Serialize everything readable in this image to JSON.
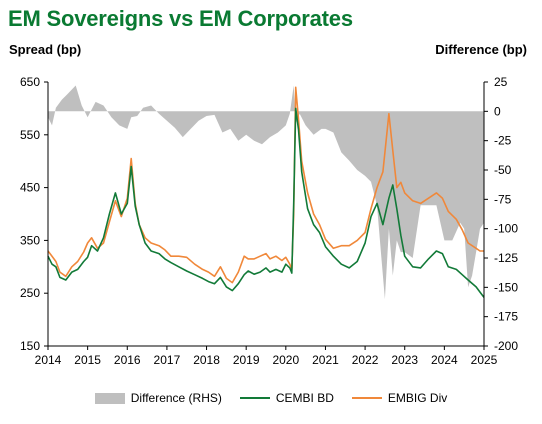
{
  "colors": {
    "title": "#0a7a32",
    "difference": "#bfbfbf",
    "cembi": "#127a38",
    "embig": "#f0883a"
  },
  "chart_data": {
    "type": "line",
    "title": "EM Sovereigns vs EM Corporates",
    "ylabel": "Spread (bp)",
    "y2label": "Difference (bp)",
    "x_ticks": [
      "2014",
      "2015",
      "2016",
      "2017",
      "2018",
      "2019",
      "2020",
      "2021",
      "2022",
      "2023",
      "2024",
      "2025"
    ],
    "ylim": [
      150,
      650
    ],
    "yticks": [
      150,
      250,
      350,
      450,
      550,
      650
    ],
    "y2lim": [
      -200,
      25
    ],
    "y2ticks": [
      -200,
      -175,
      -150,
      -125,
      -100,
      -75,
      -50,
      -25,
      0,
      25
    ],
    "legend_position": "bottom",
    "grid": false,
    "series": [
      {
        "name": "Difference (RHS)",
        "type": "area",
        "axis": "right",
        "x": [
          2014.0,
          2014.1,
          2014.2,
          2014.35,
          2014.5,
          2014.7,
          2014.85,
          2015.0,
          2015.2,
          2015.4,
          2015.6,
          2015.8,
          2016.0,
          2016.1,
          2016.25,
          2016.4,
          2016.6,
          2016.8,
          2017.0,
          2017.2,
          2017.4,
          2017.6,
          2017.8,
          2018.0,
          2018.2,
          2018.4,
          2018.6,
          2018.8,
          2019.0,
          2019.2,
          2019.4,
          2019.6,
          2019.8,
          2020.0,
          2020.1,
          2020.2,
          2020.25,
          2020.35,
          2020.5,
          2020.7,
          2020.9,
          2021.0,
          2021.2,
          2021.4,
          2021.6,
          2021.8,
          2022.0,
          2022.15,
          2022.3,
          2022.4,
          2022.5,
          2022.6,
          2022.7,
          2022.8,
          2022.9,
          2023.0,
          2023.2,
          2023.4,
          2023.6,
          2023.8,
          2024.0,
          2024.2,
          2024.4,
          2024.5,
          2024.6,
          2024.7,
          2024.8,
          2024.9,
          2025.0
        ],
        "values": [
          -5,
          -12,
          3,
          10,
          15,
          22,
          5,
          -5,
          8,
          5,
          -5,
          -12,
          -15,
          -5,
          -4,
          3,
          5,
          -2,
          -8,
          -14,
          -22,
          -15,
          -8,
          -4,
          -3,
          -18,
          -15,
          -25,
          -20,
          -25,
          -28,
          -22,
          -18,
          -12,
          -2,
          22,
          -10,
          -2,
          -12,
          -20,
          -15,
          -15,
          -18,
          -35,
          -42,
          -50,
          -55,
          -60,
          -80,
          -120,
          -160,
          -100,
          -140,
          -110,
          -120,
          -120,
          -125,
          -80,
          -80,
          -80,
          -110,
          -110,
          -95,
          -100,
          -150,
          -140,
          -120,
          -100,
          -95
        ]
      },
      {
        "name": "CEMBI BD",
        "type": "line",
        "axis": "left",
        "x": [
          2014.0,
          2014.1,
          2014.2,
          2014.3,
          2014.45,
          2014.6,
          2014.75,
          2014.9,
          2015.0,
          2015.1,
          2015.25,
          2015.4,
          2015.55,
          2015.7,
          2015.85,
          2016.0,
          2016.1,
          2016.2,
          2016.3,
          2016.45,
          2016.6,
          2016.8,
          2016.95,
          2017.1,
          2017.3,
          2017.5,
          2017.7,
          2017.9,
          2018.05,
          2018.2,
          2018.35,
          2018.5,
          2018.65,
          2018.8,
          2018.95,
          2019.05,
          2019.2,
          2019.35,
          2019.5,
          2019.6,
          2019.75,
          2019.9,
          2020.0,
          2020.1,
          2020.15,
          2020.2,
          2020.25,
          2020.32,
          2020.4,
          2020.55,
          2020.7,
          2020.85,
          2021.0,
          2021.2,
          2021.4,
          2021.6,
          2021.8,
          2022.0,
          2022.15,
          2022.3,
          2022.45,
          2022.6,
          2022.7,
          2022.8,
          2022.9,
          2023.0,
          2023.2,
          2023.4,
          2023.6,
          2023.8,
          2023.95,
          2024.1,
          2024.3,
          2024.45,
          2024.6,
          2024.8,
          2024.9,
          2025.0
        ],
        "values": [
          320,
          305,
          300,
          280,
          275,
          290,
          295,
          310,
          318,
          340,
          330,
          355,
          400,
          440,
          400,
          420,
          490,
          415,
          380,
          345,
          330,
          325,
          315,
          308,
          300,
          292,
          285,
          278,
          272,
          268,
          280,
          262,
          255,
          268,
          285,
          292,
          286,
          290,
          298,
          290,
          295,
          290,
          305,
          298,
          288,
          420,
          600,
          560,
          480,
          410,
          380,
          365,
          338,
          320,
          305,
          298,
          310,
          345,
          395,
          420,
          380,
          430,
          455,
          410,
          360,
          320,
          300,
          298,
          315,
          330,
          325,
          300,
          295,
          285,
          275,
          262,
          252,
          242
        ]
      },
      {
        "name": "EMBIG Div",
        "type": "line",
        "axis": "left",
        "x": [
          2014.0,
          2014.1,
          2014.2,
          2014.3,
          2014.45,
          2014.6,
          2014.75,
          2014.9,
          2015.0,
          2015.1,
          2015.25,
          2015.4,
          2015.55,
          2015.7,
          2015.85,
          2016.0,
          2016.1,
          2016.2,
          2016.3,
          2016.45,
          2016.6,
          2016.8,
          2016.95,
          2017.1,
          2017.3,
          2017.5,
          2017.7,
          2017.9,
          2018.05,
          2018.2,
          2018.35,
          2018.5,
          2018.65,
          2018.8,
          2018.95,
          2019.05,
          2019.2,
          2019.35,
          2019.5,
          2019.6,
          2019.75,
          2019.9,
          2020.0,
          2020.1,
          2020.15,
          2020.2,
          2020.25,
          2020.32,
          2020.4,
          2020.55,
          2020.7,
          2020.85,
          2021.0,
          2021.2,
          2021.4,
          2021.6,
          2021.8,
          2022.0,
          2022.15,
          2022.3,
          2022.45,
          2022.6,
          2022.7,
          2022.8,
          2022.9,
          2023.0,
          2023.2,
          2023.4,
          2023.6,
          2023.8,
          2023.95,
          2024.1,
          2024.3,
          2024.45,
          2024.6,
          2024.8,
          2024.9,
          2025.0
        ],
        "values": [
          330,
          320,
          310,
          290,
          282,
          300,
          310,
          328,
          345,
          355,
          335,
          345,
          385,
          425,
          395,
          430,
          505,
          420,
          380,
          355,
          345,
          340,
          332,
          320,
          320,
          318,
          305,
          295,
          290,
          282,
          300,
          278,
          270,
          290,
          320,
          315,
          315,
          320,
          325,
          315,
          320,
          312,
          318,
          305,
          295,
          400,
          640,
          580,
          500,
          440,
          400,
          380,
          352,
          335,
          340,
          340,
          350,
          365,
          410,
          450,
          480,
          590,
          520,
          450,
          460,
          440,
          425,
          420,
          430,
          440,
          430,
          405,
          390,
          370,
          345,
          335,
          330,
          330
        ]
      }
    ]
  }
}
